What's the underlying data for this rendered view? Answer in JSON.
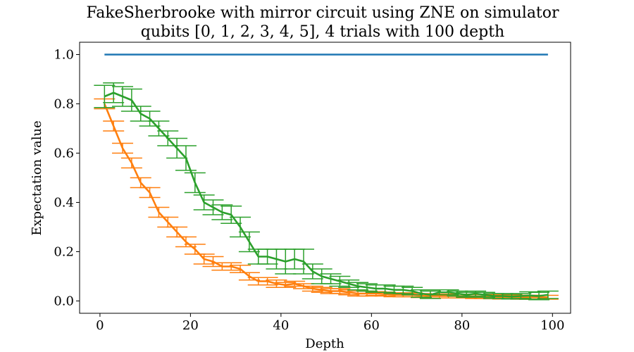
{
  "chart_data": {
    "type": "line",
    "title_line1": "FakeSherbrooke with mirror circuit using ZNE on simulator",
    "title_line2": "qubits [0, 1, 2, 3, 4, 5], 4 trials with 100 depth",
    "xlabel": "Depth",
    "ylabel": "Expectation value",
    "xlim": [
      -4.5,
      104
    ],
    "ylim": [
      -0.05,
      1.05
    ],
    "xticks": [
      0,
      20,
      40,
      60,
      80,
      100
    ],
    "xtick_labels": [
      "0",
      "20",
      "40",
      "60",
      "80",
      "100"
    ],
    "yticks": [
      0.0,
      0.2,
      0.4,
      0.6,
      0.8,
      1.0
    ],
    "ytick_labels": [
      "0.0",
      "0.2",
      "0.4",
      "0.6",
      "0.8",
      "1.0"
    ],
    "grid": false,
    "x": [
      1,
      3,
      5,
      7,
      9,
      11,
      13,
      15,
      17,
      19,
      21,
      23,
      25,
      27,
      29,
      31,
      33,
      35,
      37,
      39,
      41,
      43,
      45,
      47,
      49,
      51,
      53,
      55,
      57,
      59,
      61,
      63,
      65,
      67,
      69,
      71,
      73,
      75,
      77,
      79,
      81,
      83,
      85,
      87,
      89,
      91,
      93,
      95,
      97,
      99
    ],
    "series": [
      {
        "color": "#1f77b4",
        "values": [
          1.0,
          1.0,
          1.0,
          1.0,
          1.0,
          1.0,
          1.0,
          1.0,
          1.0,
          1.0,
          1.0,
          1.0,
          1.0,
          1.0,
          1.0,
          1.0,
          1.0,
          1.0,
          1.0,
          1.0,
          1.0,
          1.0,
          1.0,
          1.0,
          1.0,
          1.0,
          1.0,
          1.0,
          1.0,
          1.0,
          1.0,
          1.0,
          1.0,
          1.0,
          1.0,
          1.0,
          1.0,
          1.0,
          1.0,
          1.0,
          1.0,
          1.0,
          1.0,
          1.0,
          1.0,
          1.0,
          1.0,
          1.0,
          1.0,
          1.0
        ]
      },
      {
        "color": "#ff7f0e",
        "values": [
          0.8,
          0.71,
          0.62,
          0.56,
          0.48,
          0.44,
          0.36,
          0.32,
          0.28,
          0.24,
          0.21,
          0.17,
          0.16,
          0.14,
          0.14,
          0.13,
          0.1,
          0.08,
          0.08,
          0.07,
          0.065,
          0.07,
          0.06,
          0.05,
          0.045,
          0.04,
          0.04,
          0.035,
          0.03,
          0.03,
          0.03,
          0.028,
          0.025,
          0.025,
          0.025,
          0.022,
          0.02,
          0.02,
          0.02,
          0.02,
          0.02,
          0.018,
          0.018,
          0.017,
          0.016,
          0.016,
          0.015,
          0.015,
          0.015,
          0.015
        ],
        "errors": [
          0.02,
          0.02,
          0.02,
          0.02,
          0.02,
          0.02,
          0.02,
          0.02,
          0.02,
          0.02,
          0.02,
          0.02,
          0.02,
          0.015,
          0.015,
          0.015,
          0.015,
          0.015,
          0.015,
          0.015,
          0.01,
          0.01,
          0.01,
          0.01,
          0.01,
          0.01,
          0.01,
          0.01,
          0.01,
          0.01,
          0.008,
          0.008,
          0.008,
          0.008,
          0.008,
          0.008,
          0.008,
          0.008,
          0.008,
          0.008,
          0.008,
          0.008,
          0.008,
          0.008,
          0.008,
          0.008,
          0.008,
          0.008,
          0.008,
          0.008
        ]
      },
      {
        "color": "#2ca02c",
        "values": [
          0.83,
          0.845,
          0.83,
          0.815,
          0.76,
          0.74,
          0.7,
          0.66,
          0.62,
          0.58,
          0.48,
          0.4,
          0.38,
          0.36,
          0.35,
          0.3,
          0.24,
          0.18,
          0.18,
          0.17,
          0.16,
          0.17,
          0.16,
          0.12,
          0.1,
          0.09,
          0.08,
          0.07,
          0.06,
          0.055,
          0.05,
          0.05,
          0.045,
          0.045,
          0.04,
          0.03,
          0.025,
          0.035,
          0.035,
          0.03,
          0.025,
          0.03,
          0.025,
          0.02,
          0.02,
          0.018,
          0.02,
          0.022,
          0.02,
          0.025
        ],
        "errors": [
          0.045,
          0.04,
          0.04,
          0.045,
          0.03,
          0.03,
          0.03,
          0.03,
          0.04,
          0.05,
          0.04,
          0.03,
          0.03,
          0.03,
          0.035,
          0.04,
          0.04,
          0.03,
          0.03,
          0.04,
          0.05,
          0.04,
          0.05,
          0.03,
          0.03,
          0.02,
          0.02,
          0.015,
          0.015,
          0.015,
          0.015,
          0.015,
          0.015,
          0.015,
          0.015,
          0.015,
          0.015,
          0.01,
          0.01,
          0.01,
          0.01,
          0.01,
          0.01,
          0.01,
          0.01,
          0.01,
          0.01,
          0.015,
          0.015,
          0.015
        ]
      }
    ]
  }
}
